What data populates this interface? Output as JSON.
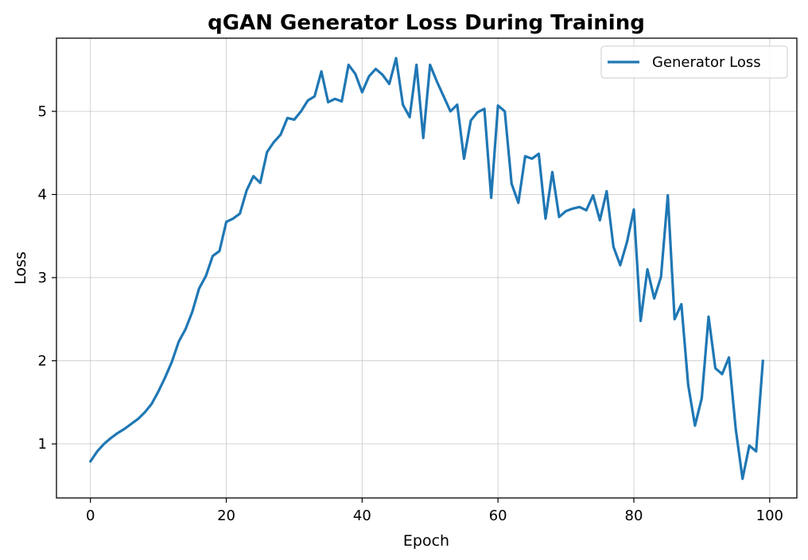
{
  "chart_data": {
    "type": "line",
    "title": "qGAN Generator Loss During Training",
    "xlabel": "Epoch",
    "ylabel": "Loss",
    "xlim": [
      -5,
      104
    ],
    "ylim": [
      0.35,
      5.88
    ],
    "xticks": [
      0,
      20,
      40,
      60,
      80,
      100
    ],
    "yticks": [
      1,
      2,
      3,
      4,
      5
    ],
    "grid": true,
    "legend": {
      "placement": "top-right",
      "entries": [
        "Generator Loss"
      ]
    },
    "series": [
      {
        "name": "Generator Loss",
        "color": "#1f77b4",
        "x": [
          0,
          1,
          2,
          3,
          4,
          5,
          6,
          7,
          8,
          9,
          10,
          11,
          12,
          13,
          14,
          15,
          16,
          17,
          18,
          19,
          20,
          21,
          22,
          23,
          24,
          25,
          26,
          27,
          28,
          29,
          30,
          31,
          32,
          33,
          34,
          35,
          36,
          37,
          38,
          39,
          40,
          41,
          42,
          43,
          44,
          45,
          46,
          47,
          48,
          49,
          50,
          51,
          52,
          53,
          54,
          55,
          56,
          57,
          58,
          59,
          60,
          61,
          62,
          63,
          64,
          65,
          66,
          67,
          68,
          69,
          70,
          71,
          72,
          73,
          74,
          75,
          76,
          77,
          78,
          79,
          80,
          81,
          82,
          83,
          84,
          85,
          86,
          87,
          88,
          89,
          90,
          91,
          92,
          93,
          94,
          95,
          96,
          97,
          98,
          99
        ],
        "y": [
          0.79,
          0.91,
          1.0,
          1.07,
          1.13,
          1.18,
          1.24,
          1.3,
          1.38,
          1.48,
          1.63,
          1.8,
          1.99,
          2.23,
          2.38,
          2.59,
          2.87,
          3.02,
          3.26,
          3.32,
          3.67,
          3.71,
          3.77,
          4.05,
          4.22,
          4.14,
          4.51,
          4.63,
          4.72,
          4.92,
          4.9,
          5.0,
          5.13,
          5.18,
          5.48,
          5.11,
          5.15,
          5.12,
          5.56,
          5.45,
          5.23,
          5.42,
          5.51,
          5.44,
          5.33,
          5.64,
          5.08,
          4.93,
          5.56,
          4.68,
          5.56,
          5.36,
          5.18,
          5.0,
          5.08,
          4.43,
          4.89,
          4.99,
          5.03,
          3.96,
          5.07,
          5.0,
          4.13,
          3.9,
          4.46,
          4.43,
          4.49,
          3.71,
          4.27,
          3.73,
          3.8,
          3.83,
          3.85,
          3.81,
          3.99,
          3.69,
          4.04,
          3.37,
          3.15,
          3.43,
          3.82,
          2.48,
          3.1,
          2.75,
          3.01,
          3.99,
          2.5,
          2.68,
          1.71,
          1.22,
          1.55,
          2.53,
          1.91,
          1.84,
          2.04,
          1.18,
          0.58,
          0.98,
          0.91,
          2.0
        ]
      }
    ]
  }
}
